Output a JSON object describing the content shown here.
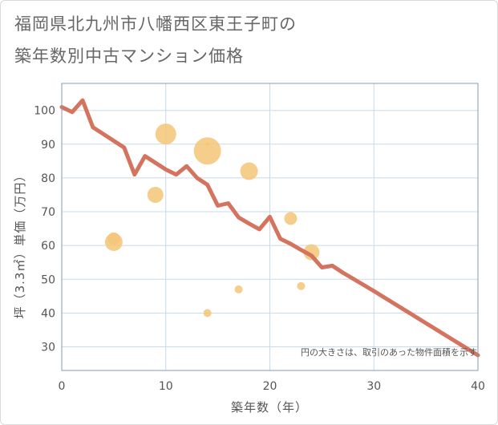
{
  "title": {
    "line1": "福岡県北九州市八幡西区東王子町の",
    "line2": "築年数別中古マンション価格"
  },
  "note": "円の大きさは、取引のあった物件面積を示す",
  "colors": {
    "line": "#d4735e",
    "bubble": "#f5c578",
    "grid": "#c9d9e8",
    "plot_border": "#8a9ab0"
  },
  "chart_data": {
    "type": "scatter",
    "xlabel": "築年数（年）",
    "ylabel": "坪（3.3㎡）単価（万円）",
    "xlim": [
      0,
      40
    ],
    "ylim": [
      23,
      108
    ],
    "x_ticks": [
      0,
      10,
      20,
      30,
      40
    ],
    "y_ticks": [
      30,
      40,
      50,
      60,
      70,
      80,
      90,
      100
    ],
    "grid": true,
    "series": [
      {
        "kind": "line",
        "x": [
          0,
          1,
          2,
          3,
          4,
          5,
          6,
          7,
          8,
          9,
          10,
          11,
          12,
          13,
          14,
          15,
          16,
          17,
          18,
          19,
          20,
          21,
          22,
          23,
          24,
          25,
          26,
          27,
          30,
          35,
          40
        ],
        "y": [
          101,
          99.5,
          103,
          95,
          93,
          91,
          89,
          81,
          86.5,
          84.5,
          82.5,
          81,
          83.5,
          80,
          78,
          71.8,
          72.5,
          68.3,
          66.5,
          64.8,
          68.5,
          62,
          60.5,
          58.7,
          57,
          53.5,
          54,
          52,
          46.5,
          37,
          27.5
        ]
      },
      {
        "kind": "bubble",
        "points": [
          {
            "x": 5,
            "y": 61,
            "size": 11
          },
          {
            "x": 5,
            "y": 62,
            "size": 8
          },
          {
            "x": 9,
            "y": 75,
            "size": 10
          },
          {
            "x": 10,
            "y": 93,
            "size": 13
          },
          {
            "x": 14,
            "y": 88,
            "size": 17
          },
          {
            "x": 14,
            "y": 90,
            "size": 2
          },
          {
            "x": 14,
            "y": 40,
            "size": 5
          },
          {
            "x": 17,
            "y": 47,
            "size": 5
          },
          {
            "x": 18,
            "y": 82,
            "size": 11
          },
          {
            "x": 22,
            "y": 68,
            "size": 8
          },
          {
            "x": 23,
            "y": 48,
            "size": 5
          },
          {
            "x": 24,
            "y": 58,
            "size": 10
          }
        ]
      }
    ]
  }
}
